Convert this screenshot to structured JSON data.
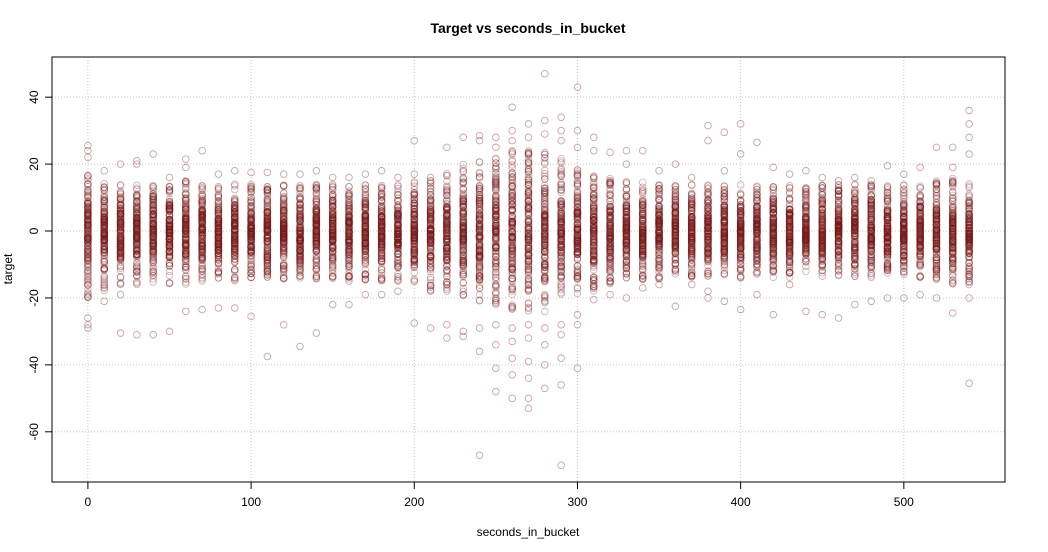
{
  "chart_data": {
    "type": "scatter",
    "title": "Target vs seconds_in_bucket",
    "xlabel": "seconds_in_bucket",
    "ylabel": "target",
    "xlim": [
      -22,
      562
    ],
    "ylim": [
      -75,
      52
    ],
    "x_ticks": [
      0,
      100,
      200,
      300,
      400,
      500
    ],
    "y_ticks": [
      -60,
      -40,
      -20,
      0,
      20,
      40
    ],
    "grid": true,
    "point_color": "#7a1a1a",
    "x_buckets": [
      0,
      10,
      20,
      30,
      40,
      50,
      60,
      70,
      80,
      90,
      100,
      110,
      120,
      130,
      140,
      150,
      160,
      170,
      180,
      190,
      200,
      210,
      220,
      230,
      240,
      250,
      260,
      270,
      280,
      290,
      300,
      310,
      320,
      330,
      340,
      350,
      360,
      370,
      380,
      390,
      400,
      410,
      420,
      430,
      440,
      450,
      460,
      470,
      480,
      490,
      500,
      510,
      520,
      530,
      540
    ],
    "bucket_core_range": [
      [
        -20,
        18
      ],
      [
        -18,
        15
      ],
      [
        -16,
        14
      ],
      [
        -16,
        14
      ],
      [
        -16,
        14
      ],
      [
        -16,
        14
      ],
      [
        -16,
        15
      ],
      [
        -15,
        15
      ],
      [
        -15,
        14
      ],
      [
        -15,
        14
      ],
      [
        -14,
        14
      ],
      [
        -14,
        14
      ],
      [
        -15,
        14
      ],
      [
        -15,
        14
      ],
      [
        -15,
        14
      ],
      [
        -15,
        14
      ],
      [
        -15,
        14
      ],
      [
        -15,
        14
      ],
      [
        -15,
        14
      ],
      [
        -15,
        14
      ],
      [
        -16,
        15
      ],
      [
        -18,
        16
      ],
      [
        -18,
        18
      ],
      [
        -20,
        20
      ],
      [
        -22,
        21
      ],
      [
        -22,
        22
      ],
      [
        -24,
        24
      ],
      [
        -24,
        24
      ],
      [
        -25,
        25
      ],
      [
        -22,
        22
      ],
      [
        -19,
        19
      ],
      [
        -18,
        17
      ],
      [
        -16,
        16
      ],
      [
        -15,
        15
      ],
      [
        -15,
        15
      ],
      [
        -15,
        14
      ],
      [
        -14,
        14
      ],
      [
        -14,
        14
      ],
      [
        -14,
        14
      ],
      [
        -14,
        14
      ],
      [
        -14,
        14
      ],
      [
        -14,
        14
      ],
      [
        -14,
        14
      ],
      [
        -14,
        14
      ],
      [
        -14,
        14
      ],
      [
        -14,
        14
      ],
      [
        -14,
        14
      ],
      [
        -14,
        14
      ],
      [
        -14,
        14
      ],
      [
        -14,
        14
      ],
      [
        -14,
        14
      ],
      [
        -14,
        14
      ],
      [
        -15,
        15
      ],
      [
        -16,
        16
      ],
      [
        -16,
        16
      ]
    ],
    "outliers": [
      {
        "x": 0,
        "y": 25.5
      },
      {
        "x": 0,
        "y": 24
      },
      {
        "x": 0,
        "y": 22
      },
      {
        "x": 0,
        "y": -26
      },
      {
        "x": 0,
        "y": -28
      },
      {
        "x": 0,
        "y": -29
      },
      {
        "x": 10,
        "y": 18
      },
      {
        "x": 10,
        "y": -21
      },
      {
        "x": 20,
        "y": 20
      },
      {
        "x": 20,
        "y": -19
      },
      {
        "x": 20,
        "y": -30.5
      },
      {
        "x": 30,
        "y": 21
      },
      {
        "x": 30,
        "y": 20
      },
      {
        "x": 30,
        "y": -31
      },
      {
        "x": 40,
        "y": 23
      },
      {
        "x": 40,
        "y": -31
      },
      {
        "x": 50,
        "y": 16
      },
      {
        "x": 50,
        "y": -30
      },
      {
        "x": 60,
        "y": 21.5
      },
      {
        "x": 60,
        "y": 19
      },
      {
        "x": 60,
        "y": -24
      },
      {
        "x": 70,
        "y": 24
      },
      {
        "x": 70,
        "y": -23.5
      },
      {
        "x": 80,
        "y": 17
      },
      {
        "x": 80,
        "y": -23
      },
      {
        "x": 90,
        "y": 18
      },
      {
        "x": 90,
        "y": -23
      },
      {
        "x": 100,
        "y": 17.5
      },
      {
        "x": 100,
        "y": -25.5
      },
      {
        "x": 110,
        "y": 17.5
      },
      {
        "x": 110,
        "y": -37.5
      },
      {
        "x": 120,
        "y": 17
      },
      {
        "x": 120,
        "y": -28
      },
      {
        "x": 130,
        "y": 17
      },
      {
        "x": 130,
        "y": -34.5
      },
      {
        "x": 140,
        "y": 18
      },
      {
        "x": 140,
        "y": -30.5
      },
      {
        "x": 150,
        "y": 16
      },
      {
        "x": 150,
        "y": -22
      },
      {
        "x": 160,
        "y": 16
      },
      {
        "x": 160,
        "y": -22
      },
      {
        "x": 170,
        "y": 17
      },
      {
        "x": 170,
        "y": -19
      },
      {
        "x": 180,
        "y": 18
      },
      {
        "x": 180,
        "y": -19
      },
      {
        "x": 190,
        "y": 16
      },
      {
        "x": 190,
        "y": -18
      },
      {
        "x": 200,
        "y": 27
      },
      {
        "x": 200,
        "y": 17
      },
      {
        "x": 200,
        "y": -27.5
      },
      {
        "x": 210,
        "y": 16
      },
      {
        "x": 210,
        "y": -29
      },
      {
        "x": 220,
        "y": 25
      },
      {
        "x": 220,
        "y": -32
      },
      {
        "x": 220,
        "y": -28
      },
      {
        "x": 230,
        "y": 28
      },
      {
        "x": 230,
        "y": -31.5
      },
      {
        "x": 230,
        "y": -30
      },
      {
        "x": 240,
        "y": 28.5
      },
      {
        "x": 240,
        "y": 27
      },
      {
        "x": 240,
        "y": -29
      },
      {
        "x": 240,
        "y": -36
      },
      {
        "x": 240,
        "y": -67
      },
      {
        "x": 250,
        "y": 28
      },
      {
        "x": 250,
        "y": 25
      },
      {
        "x": 250,
        "y": -48
      },
      {
        "x": 250,
        "y": -41
      },
      {
        "x": 250,
        "y": -34
      },
      {
        "x": 250,
        "y": -28
      },
      {
        "x": 260,
        "y": 37
      },
      {
        "x": 260,
        "y": 30
      },
      {
        "x": 260,
        "y": 27
      },
      {
        "x": 260,
        "y": -50
      },
      {
        "x": 260,
        "y": -43
      },
      {
        "x": 260,
        "y": -38
      },
      {
        "x": 260,
        "y": -33
      },
      {
        "x": 260,
        "y": -29
      },
      {
        "x": 270,
        "y": 32
      },
      {
        "x": 270,
        "y": 28
      },
      {
        "x": 270,
        "y": -53
      },
      {
        "x": 270,
        "y": -50
      },
      {
        "x": 270,
        "y": -44
      },
      {
        "x": 270,
        "y": -39
      },
      {
        "x": 270,
        "y": -32
      },
      {
        "x": 270,
        "y": -28
      },
      {
        "x": 280,
        "y": 47
      },
      {
        "x": 280,
        "y": 33
      },
      {
        "x": 280,
        "y": 29
      },
      {
        "x": 280,
        "y": -47
      },
      {
        "x": 280,
        "y": -40
      },
      {
        "x": 280,
        "y": -34
      },
      {
        "x": 280,
        "y": -29
      },
      {
        "x": 290,
        "y": 34
      },
      {
        "x": 290,
        "y": 30
      },
      {
        "x": 290,
        "y": 27
      },
      {
        "x": 290,
        "y": -70
      },
      {
        "x": 290,
        "y": -46
      },
      {
        "x": 290,
        "y": -38
      },
      {
        "x": 290,
        "y": -31
      },
      {
        "x": 290,
        "y": -28
      },
      {
        "x": 300,
        "y": 43
      },
      {
        "x": 300,
        "y": 30
      },
      {
        "x": 300,
        "y": 25
      },
      {
        "x": 300,
        "y": -41
      },
      {
        "x": 300,
        "y": -28
      },
      {
        "x": 300,
        "y": -25
      },
      {
        "x": 310,
        "y": 28
      },
      {
        "x": 310,
        "y": 24
      },
      {
        "x": 310,
        "y": -20.5
      },
      {
        "x": 320,
        "y": 23.5
      },
      {
        "x": 320,
        "y": -19
      },
      {
        "x": 330,
        "y": 24
      },
      {
        "x": 330,
        "y": 20
      },
      {
        "x": 330,
        "y": -20
      },
      {
        "x": 340,
        "y": 24
      },
      {
        "x": 340,
        "y": -17
      },
      {
        "x": 350,
        "y": 18
      },
      {
        "x": 350,
        "y": -16
      },
      {
        "x": 360,
        "y": 20
      },
      {
        "x": 360,
        "y": -22.5
      },
      {
        "x": 370,
        "y": 16
      },
      {
        "x": 370,
        "y": -16
      },
      {
        "x": 380,
        "y": 31.5
      },
      {
        "x": 380,
        "y": 27
      },
      {
        "x": 380,
        "y": -18
      },
      {
        "x": 380,
        "y": -20
      },
      {
        "x": 390,
        "y": 29.5
      },
      {
        "x": 390,
        "y": 18
      },
      {
        "x": 390,
        "y": -21
      },
      {
        "x": 400,
        "y": 32
      },
      {
        "x": 400,
        "y": 23
      },
      {
        "x": 400,
        "y": -23.5
      },
      {
        "x": 410,
        "y": 26.5
      },
      {
        "x": 410,
        "y": -19
      },
      {
        "x": 420,
        "y": 19
      },
      {
        "x": 420,
        "y": -25
      },
      {
        "x": 430,
        "y": 17
      },
      {
        "x": 430,
        "y": -16
      },
      {
        "x": 440,
        "y": 18
      },
      {
        "x": 440,
        "y": -24
      },
      {
        "x": 450,
        "y": 16
      },
      {
        "x": 450,
        "y": -25
      },
      {
        "x": 460,
        "y": 15
      },
      {
        "x": 460,
        "y": -26
      },
      {
        "x": 470,
        "y": 16
      },
      {
        "x": 470,
        "y": -22
      },
      {
        "x": 480,
        "y": 15
      },
      {
        "x": 480,
        "y": -21
      },
      {
        "x": 490,
        "y": 19.5
      },
      {
        "x": 490,
        "y": -20
      },
      {
        "x": 500,
        "y": 17
      },
      {
        "x": 500,
        "y": -20
      },
      {
        "x": 510,
        "y": 19
      },
      {
        "x": 510,
        "y": -19
      },
      {
        "x": 520,
        "y": 25
      },
      {
        "x": 520,
        "y": -20
      },
      {
        "x": 530,
        "y": 25
      },
      {
        "x": 530,
        "y": 19
      },
      {
        "x": 530,
        "y": -24.5
      },
      {
        "x": 540,
        "y": 36
      },
      {
        "x": 540,
        "y": 32
      },
      {
        "x": 540,
        "y": 28
      },
      {
        "x": 540,
        "y": 23
      },
      {
        "x": 540,
        "y": -45.5
      },
      {
        "x": 540,
        "y": -20
      }
    ]
  }
}
